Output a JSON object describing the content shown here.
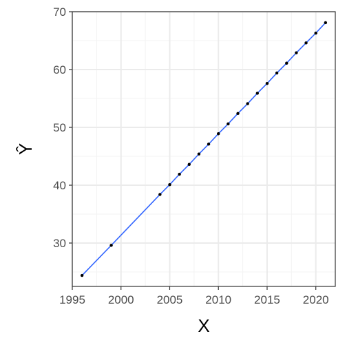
{
  "chart_data": {
    "type": "line",
    "title": "",
    "xlabel": "X",
    "ylabel": "Ŷ",
    "xlim": [
      1995,
      2022
    ],
    "ylim": [
      22.5,
      70
    ],
    "x_ticks": [
      1995,
      2000,
      2005,
      2010,
      2015,
      2020
    ],
    "y_ticks": [
      30,
      40,
      50,
      60,
      70
    ],
    "x_minor_ticks": [
      1997.5,
      2002.5,
      2007.5,
      2012.5,
      2017.5
    ],
    "y_minor_ticks": [
      25,
      35,
      45,
      55,
      65
    ],
    "grid": true,
    "series": [
      {
        "x": [
          1996,
          1999,
          2004,
          2005,
          2006,
          2007,
          2008,
          2009,
          2010,
          2011,
          2012,
          2013,
          2014,
          2015,
          2016,
          2017,
          2018,
          2019,
          2020,
          2021
        ],
        "values": [
          24.4,
          29.6,
          38.4,
          40.1,
          41.9,
          43.6,
          45.4,
          47.1,
          48.9,
          50.6,
          52.4,
          54.1,
          55.9,
          57.6,
          59.4,
          61.1,
          62.9,
          64.6,
          66.3,
          68.1
        ]
      }
    ],
    "colors": {
      "line": "#3366ff",
      "points": "#000000",
      "grid_major": "#ebebeb",
      "grid_minor": "#f3f3f3",
      "panel_border": "#333333",
      "tick_text": "#4d4d4d"
    }
  }
}
